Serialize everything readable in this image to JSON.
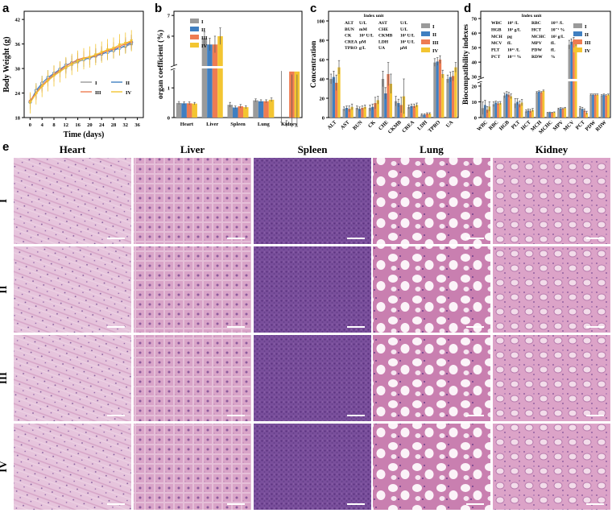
{
  "panel_labels": [
    "a",
    "b",
    "c",
    "d",
    "e"
  ],
  "groups": [
    "I",
    "II",
    "III",
    "IV"
  ],
  "colors": {
    "I": "#9a9a9a",
    "II": "#3f7fc1",
    "III": "#ee7c52",
    "IV": "#f3c531"
  },
  "chart_data": [
    {
      "panel": "a",
      "type": "line",
      "xlabel": "Time (days)",
      "ylabel": "Body Weight (g)",
      "xlim": [
        -2,
        38
      ],
      "ylim": [
        18,
        44
      ],
      "xticks": [
        0,
        4,
        8,
        12,
        16,
        20,
        24,
        28,
        32,
        36
      ],
      "yticks": [
        18,
        24,
        30,
        36,
        42
      ],
      "x": [
        0,
        2,
        4,
        6,
        8,
        10,
        12,
        14,
        16,
        18,
        20,
        22,
        24,
        26,
        28,
        30,
        32,
        34
      ],
      "series": [
        {
          "name": "I",
          "values": [
            22.0,
            24.2,
            26.0,
            27.2,
            28.4,
            29.4,
            30.2,
            31.0,
            31.6,
            32.2,
            32.6,
            33.0,
            33.5,
            34.0,
            34.6,
            35.0,
            35.4,
            36.0
          ],
          "err": 1.6
        },
        {
          "name": "II",
          "values": [
            21.8,
            24.6,
            26.4,
            27.8,
            28.8,
            29.8,
            30.8,
            31.4,
            32.0,
            32.2,
            32.6,
            33.2,
            33.6,
            34.0,
            34.4,
            35.0,
            35.6,
            36.4
          ],
          "err": 1.8
        },
        {
          "name": "III",
          "values": [
            22.2,
            24.0,
            25.8,
            27.4,
            28.6,
            29.6,
            30.6,
            31.4,
            32.2,
            32.6,
            32.8,
            33.2,
            33.8,
            34.4,
            34.8,
            35.4,
            36.0,
            36.6
          ],
          "err": 1.7
        },
        {
          "name": "IV",
          "values": [
            21.6,
            23.8,
            25.6,
            27.0,
            28.2,
            29.2,
            30.2,
            31.0,
            31.8,
            32.4,
            32.8,
            33.4,
            34.0,
            34.6,
            35.0,
            35.8,
            36.2,
            36.8
          ],
          "err": 2.6
        }
      ]
    },
    {
      "panel": "b",
      "type": "bar",
      "ylabel": "organ coefficient (%)",
      "categories": [
        "Heart",
        "Liver",
        "Spleen",
        "Lung",
        "Kidney"
      ],
      "yticks_lower": [
        0,
        1
      ],
      "yticks_upper": [
        6,
        7
      ],
      "axis_break": [
        1.6,
        4.6
      ],
      "series": [
        {
          "name": "I",
          "values": [
            0.49,
            5.9,
            0.43,
            0.58,
            1.72
          ],
          "err": [
            0.05,
            0.3,
            0.08,
            0.05,
            0.15
          ]
        },
        {
          "name": "II",
          "values": [
            0.48,
            5.6,
            0.34,
            0.55,
            1.78
          ],
          "err": [
            0.05,
            0.3,
            0.05,
            0.05,
            0.15
          ]
        },
        {
          "name": "III",
          "values": [
            0.48,
            5.6,
            0.38,
            0.55,
            1.55
          ],
          "err": [
            0.05,
            0.4,
            0.06,
            0.05,
            0.1
          ]
        },
        {
          "name": "IV",
          "values": [
            0.47,
            6.0,
            0.35,
            0.6,
            1.55
          ],
          "err": [
            0.04,
            0.4,
            0.05,
            0.06,
            0.1
          ]
        }
      ]
    },
    {
      "panel": "c",
      "type": "bar",
      "ylabel": "Concentration",
      "categories": [
        "ALT",
        "AST",
        "BUN",
        "CK",
        "CHE",
        "CKMB",
        "CREA",
        "LDH",
        "TPRO",
        "UA"
      ],
      "ylim": [
        0,
        110
      ],
      "yticks": [
        0,
        20,
        40,
        60,
        80,
        100
      ],
      "legend_title": "Index unit",
      "units": [
        [
          "ALT",
          "U/L",
          "AST",
          "U/L"
        ],
        [
          "BUN",
          "mM",
          "CHE",
          "U/L"
        ],
        [
          "CK",
          "10² U/L",
          "CKMB",
          "10² U/L"
        ],
        [
          "CREA",
          "μM",
          "LDH",
          "10² U/L"
        ],
        [
          "TPRO",
          "g/L",
          "UA",
          "μM"
        ]
      ],
      "series": [
        {
          "name": "I",
          "values": [
            40,
            9,
            10,
            10,
            40,
            17,
            11,
            3,
            57,
            40
          ],
          "err": [
            5,
            2,
            2,
            3,
            8,
            5,
            2,
            1,
            4,
            4
          ]
        },
        {
          "name": "II",
          "values": [
            42,
            10,
            9,
            11,
            25,
            15,
            12,
            3,
            58,
            42
          ],
          "err": [
            6,
            2,
            2,
            3,
            6,
            4,
            2,
            1,
            4,
            5
          ]
        },
        {
          "name": "III",
          "values": [
            36,
            9,
            10,
            15,
            45,
            13,
            12,
            4,
            60,
            43
          ],
          "err": [
            8,
            3,
            2,
            6,
            12,
            8,
            2,
            1,
            4,
            5
          ]
        },
        {
          "name": "IV",
          "values": [
            52,
            11,
            11,
            18,
            35,
            22,
            13,
            4,
            45,
            52
          ],
          "err": [
            7,
            3,
            2,
            4,
            10,
            18,
            2,
            1,
            4,
            5
          ]
        }
      ]
    },
    {
      "panel": "d",
      "type": "bar",
      "ylabel": "Biocompatibility indexes",
      "categories": [
        "WBC",
        "RBC",
        "HGB",
        "PLT",
        "HCT",
        "MCH",
        "MCHC",
        "MPV",
        "MCV",
        "PCT",
        "PDW",
        "RDW"
      ],
      "yticks_lower": [
        0,
        10,
        20
      ],
      "yticks_upper": [
        30,
        40,
        50,
        60,
        70
      ],
      "axis_break": [
        22,
        29
      ],
      "legend_title": "Index unit",
      "units": [
        [
          "WBC",
          "10⁹ /L",
          "RBC",
          "10¹² /L"
        ],
        [
          "HGB",
          "10¹ g/L",
          "HCT",
          "10⁻¹ %"
        ],
        [
          "MCH",
          "pg",
          "MCHC",
          "10² g/L"
        ],
        [
          "MCV",
          "fL",
          "MPV",
          "fL"
        ],
        [
          "PLT",
          "10¹¹ /L",
          "PDW",
          "fL"
        ],
        [
          "PCT",
          "10⁻¹ %",
          "RDW",
          "%"
        ]
      ],
      "series": [
        {
          "name": "I",
          "values": [
            6,
            8.5,
            14,
            9,
            4,
            16,
            3,
            5.5,
            52,
            6,
            14.5,
            14
          ],
          "err": [
            4,
            1.5,
            1.5,
            3,
            1,
            0.5,
            0.3,
            0.5,
            3,
            1,
            0.5,
            0.5
          ]
        },
        {
          "name": "II",
          "values": [
            8,
            9.5,
            15,
            10,
            4.5,
            16.5,
            3.2,
            5.8,
            54,
            5.5,
            14.5,
            14.5
          ],
          "err": [
            3,
            1,
            1.5,
            2,
            1,
            0.5,
            0.3,
            0.5,
            2,
            1,
            0.5,
            0.5
          ]
        },
        {
          "name": "III",
          "values": [
            5,
            9,
            14.5,
            8.5,
            4.2,
            16,
            3.1,
            5.6,
            55,
            4.5,
            14.5,
            14
          ],
          "err": [
            2,
            1,
            1.5,
            2,
            1,
            0.5,
            0.3,
            0.5,
            2,
            1,
            0.5,
            0.5
          ]
        },
        {
          "name": "IV",
          "values": [
            7,
            9.2,
            13.5,
            9.5,
            4.8,
            17,
            3.3,
            6,
            53,
            3,
            14.5,
            14.5
          ],
          "err": [
            3,
            1,
            1.5,
            2,
            1,
            0.5,
            0.3,
            0.5,
            2,
            1,
            0.5,
            0.5
          ]
        }
      ]
    }
  ],
  "histology": {
    "columns": [
      "Heart",
      "Liver",
      "Spleen",
      "Lung",
      "Kidney"
    ],
    "rows": [
      "I",
      "II",
      "III",
      "IV"
    ]
  }
}
